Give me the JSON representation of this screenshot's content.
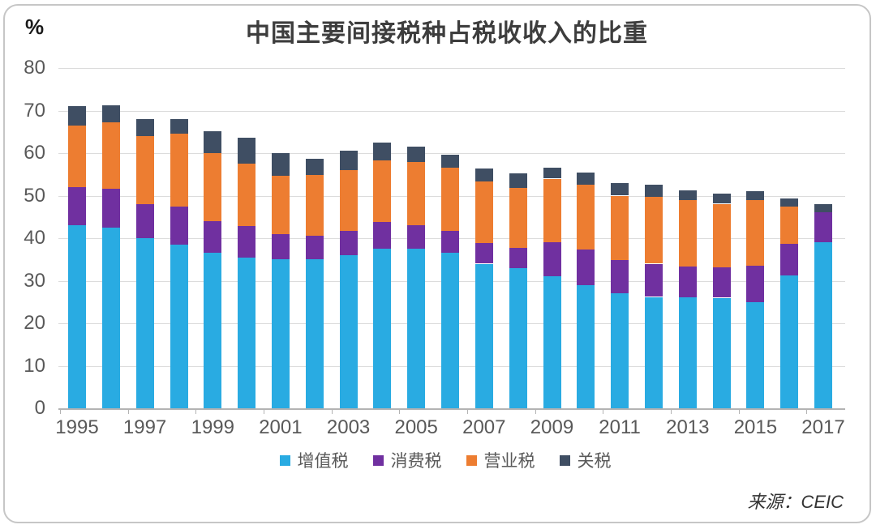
{
  "chart_data": {
    "type": "bar",
    "stacked": true,
    "title": "中国主要间接税种占税收收入的比重",
    "unit_label": "%",
    "source": "来源：CEIC",
    "grid": "horizontal",
    "legend_position": "bottom",
    "years": [
      1995,
      1996,
      1997,
      1998,
      1999,
      2000,
      2001,
      2002,
      2003,
      2004,
      2005,
      2006,
      2007,
      2008,
      2009,
      2010,
      2011,
      2012,
      2013,
      2014,
      2015,
      2016,
      2017
    ],
    "x_tick_labels": [
      "1995",
      "1997",
      "1999",
      "2001",
      "2003",
      "2005",
      "2007",
      "2009",
      "2011",
      "2013",
      "2015",
      "2017"
    ],
    "ylim": [
      0,
      80
    ],
    "yticks": [
      0,
      10,
      20,
      30,
      40,
      50,
      60,
      70,
      80
    ],
    "series": [
      {
        "key": "vat",
        "name": "增值税",
        "color": "#29abe2",
        "values": [
          43.0,
          42.5,
          40.0,
          38.5,
          36.5,
          35.5,
          35.0,
          35.0,
          36.0,
          37.5,
          37.5,
          36.5,
          34.0,
          33.0,
          31.0,
          29.0,
          27.0,
          26.2,
          26.1,
          26.0,
          25.0,
          31.3,
          39.0
        ]
      },
      {
        "key": "consumption-tax",
        "name": "消费税",
        "color": "#7030a0",
        "values": [
          9.0,
          9.2,
          8.0,
          9.0,
          7.5,
          7.4,
          6.0,
          5.6,
          5.8,
          6.3,
          5.5,
          5.2,
          4.8,
          4.8,
          8.0,
          8.4,
          7.8,
          7.8,
          7.3,
          7.1,
          8.5,
          7.4,
          7.1
        ]
      },
      {
        "key": "business-tax",
        "name": "营业税",
        "color": "#ed7d31",
        "values": [
          14.5,
          15.5,
          16.0,
          17.0,
          16.0,
          14.7,
          13.7,
          14.3,
          14.2,
          14.5,
          14.9,
          14.8,
          14.5,
          14.0,
          15.0,
          15.2,
          15.2,
          15.7,
          15.6,
          15.0,
          15.4,
          8.7,
          0.0
        ]
      },
      {
        "key": "tariff",
        "name": "关税",
        "color": "#3f4e63",
        "values": [
          4.5,
          4.0,
          4.0,
          3.5,
          5.2,
          6.0,
          5.4,
          3.8,
          4.6,
          4.2,
          3.7,
          3.2,
          3.0,
          3.4,
          2.6,
          2.8,
          2.9,
          2.8,
          2.2,
          2.3,
          2.1,
          2.0,
          2.0
        ]
      }
    ]
  }
}
